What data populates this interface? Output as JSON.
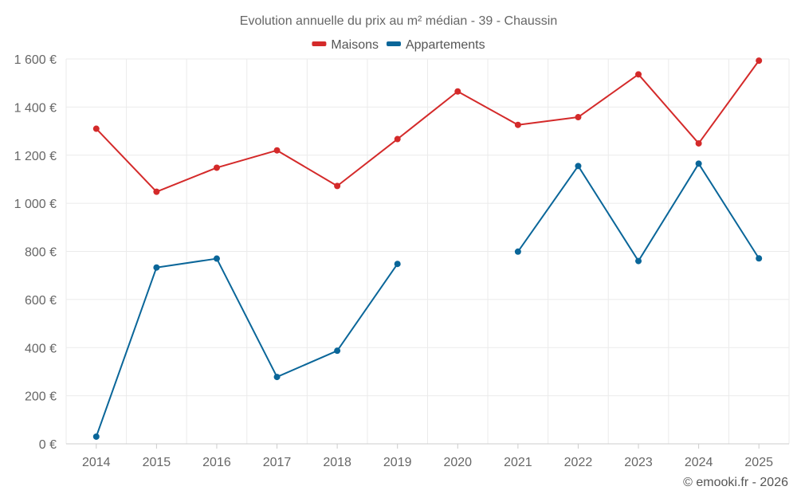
{
  "chart_data": {
    "type": "line",
    "title": "Evolution annuelle du prix au m² médian - 39 - Chaussin",
    "categories": [
      "2014",
      "2015",
      "2016",
      "2017",
      "2018",
      "2019",
      "2020",
      "2021",
      "2022",
      "2023",
      "2024",
      "2025"
    ],
    "series": [
      {
        "name": "Maisons",
        "color": "#d42a2a",
        "values": [
          1310,
          1048,
          1148,
          1220,
          1072,
          1267,
          1465,
          1326,
          1358,
          1536,
          1249,
          1593
        ]
      },
      {
        "name": "Appartements",
        "color": "#0a6699",
        "values": [
          30,
          733,
          770,
          278,
          387,
          748,
          null,
          799,
          1155,
          760,
          1165,
          771
        ]
      }
    ],
    "ylim": [
      0,
      1600
    ],
    "yticks": [
      0,
      200,
      400,
      600,
      800,
      1000,
      1200,
      1400,
      1600
    ],
    "ytick_labels": [
      "0 €",
      "200 €",
      "400 €",
      "600 €",
      "800 €",
      "1 000 €",
      "1 200 €",
      "1 400 €",
      "1 600 €"
    ],
    "xlabel": "",
    "ylabel": "",
    "legend_position": "top-center",
    "grid": true
  },
  "credit": "© emooki.fr - 2026"
}
